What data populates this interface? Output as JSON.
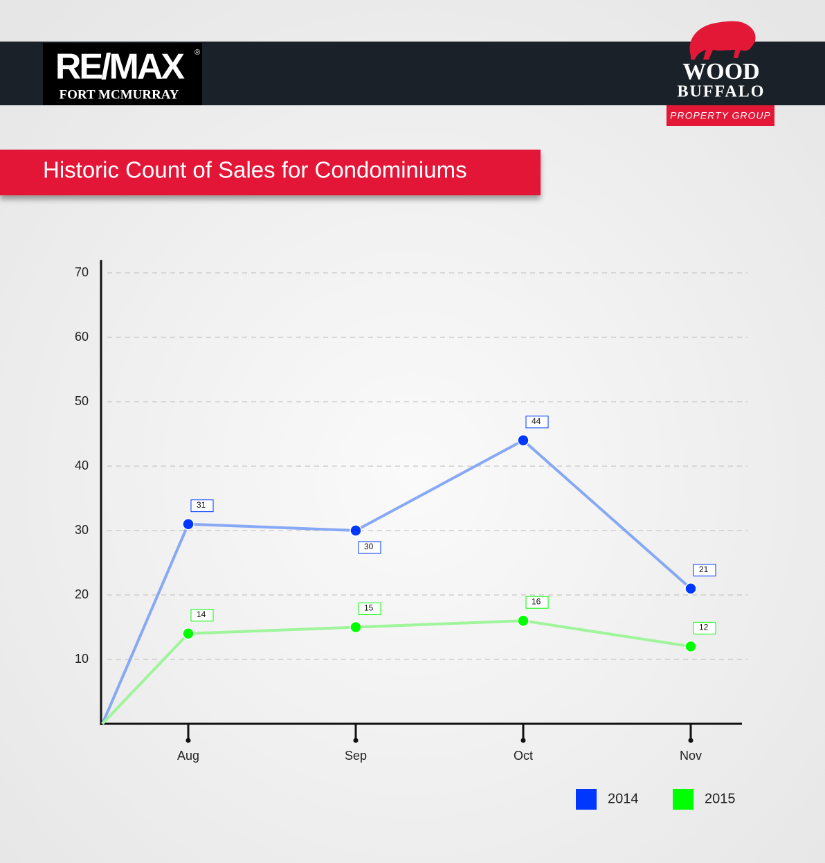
{
  "header": {
    "left_logo": {
      "brand": "RE/MAX",
      "mark": "®",
      "location": "FORT MCMURRAY"
    },
    "right_logo": {
      "line1": "WOOD",
      "line2": "BUFFALO",
      "tagline": "PROPERTY GROUP"
    }
  },
  "chart_data": {
    "type": "line",
    "title": "Historic Count of Sales for Condominiums",
    "categories": [
      null,
      "Aug",
      "Sep",
      "Oct",
      "Nov"
    ],
    "series": [
      {
        "name": "2014",
        "color": "#0037ff",
        "line_color": "#87a8f5",
        "values": [
          0,
          31,
          30,
          44,
          21
        ]
      },
      {
        "name": "2015",
        "color": "#00ff00",
        "line_color": "#9ef59a",
        "values": [
          0,
          14,
          15,
          16,
          12
        ]
      }
    ],
    "ylim": [
      0,
      72
    ],
    "yticks": [
      10,
      20,
      30,
      40,
      50,
      60,
      70
    ],
    "grid": true,
    "data_labels": true,
    "legend": "bottom-right"
  }
}
